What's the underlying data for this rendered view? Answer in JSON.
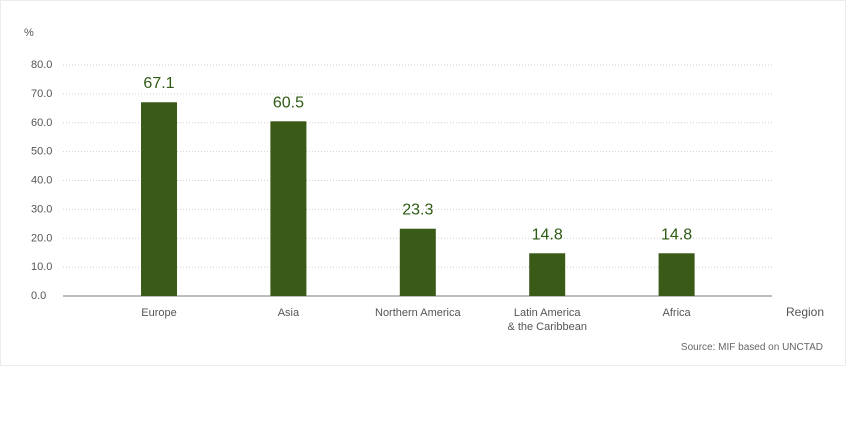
{
  "chart_data": {
    "type": "bar",
    "unit_label": "%",
    "xlabel": "Region",
    "categories": [
      [
        "Europe"
      ],
      [
        "Asia"
      ],
      [
        "Northern America"
      ],
      [
        "Latin America",
        "& the Caribbean"
      ],
      [
        "Africa"
      ]
    ],
    "values": [
      67.1,
      60.5,
      23.3,
      14.8,
      14.8
    ],
    "value_labels": [
      "67.1",
      "60.5",
      "23.3",
      "14.8",
      "14.8"
    ],
    "yticks": [
      "0.0",
      "10.0",
      "20.0",
      "30.0",
      "40.0",
      "50.0",
      "60.0",
      "70.0",
      "80.0"
    ],
    "ylim": [
      0,
      80
    ],
    "grid": true,
    "bar_color": "#3a5a18",
    "value_label_color": "#2e5b13",
    "source": "Source: MIF based on UNCTAD"
  }
}
